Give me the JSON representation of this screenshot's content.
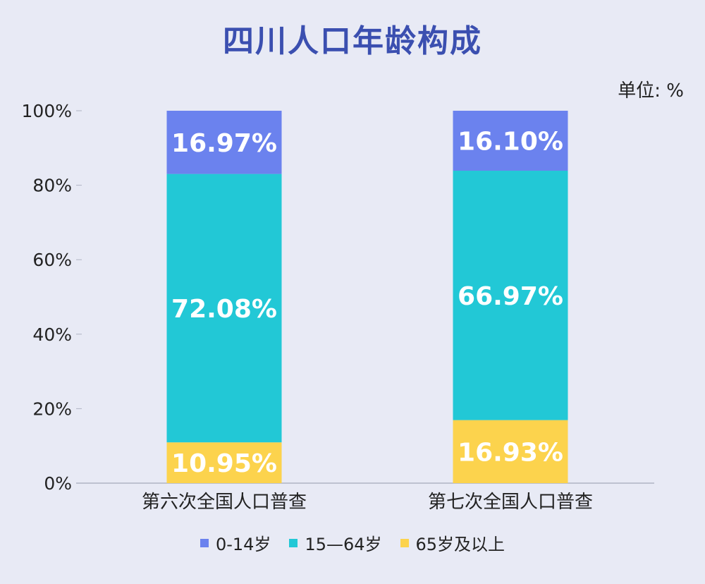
{
  "chart_data": {
    "type": "bar",
    "stacked": true,
    "title": "四川人口年龄构成",
    "unit_label": "单位: %",
    "categories": [
      "第六次全国人口普查",
      "第七次全国人口普查"
    ],
    "series": [
      {
        "name": "65岁及以上",
        "color": "#fcd34d",
        "values": [
          10.95,
          16.93
        ],
        "labels": [
          "10.95%",
          "16.93%"
        ]
      },
      {
        "name": "15—64岁",
        "color": "#22c8d6",
        "values": [
          72.08,
          66.97
        ],
        "labels": [
          "72.08%",
          "66.97%"
        ]
      },
      {
        "name": "0-14岁",
        "color": "#6b82ee",
        "values": [
          16.97,
          16.1
        ],
        "labels": [
          "16.97%",
          "16.10%"
        ]
      }
    ],
    "yticks": [
      "0%",
      "20%",
      "40%",
      "60%",
      "80%",
      "100%"
    ],
    "ylim": [
      0,
      100
    ],
    "legend_order": [
      "0-14岁",
      "15—64岁",
      "65岁及以上"
    ],
    "legend_colors": [
      "#6b82ee",
      "#22c8d6",
      "#fcd34d"
    ],
    "legend_position": "bottom",
    "grid": false
  }
}
